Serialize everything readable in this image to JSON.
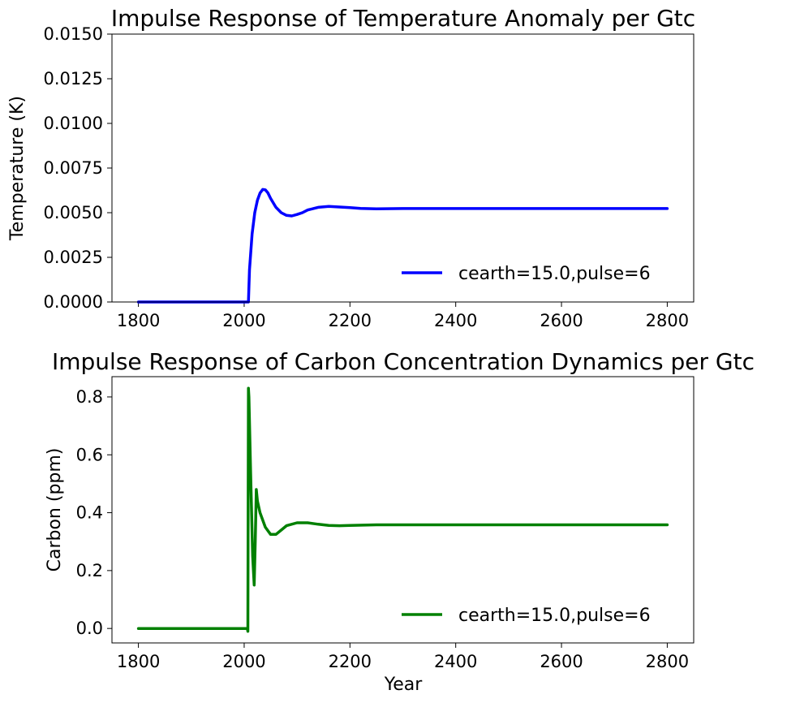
{
  "chart_data": [
    {
      "type": "line",
      "title": "Impulse Response of Temperature Anomaly per Gtc",
      "xlabel": "",
      "ylabel": "Temperature (K)",
      "xlim": [
        1750,
        2850
      ],
      "ylim": [
        0.0,
        0.015
      ],
      "xticks": [
        1800,
        2000,
        2200,
        2400,
        2600,
        2800
      ],
      "yticks": [
        0.0,
        0.0025,
        0.005,
        0.0075,
        0.01,
        0.0125,
        0.015
      ],
      "ytick_labels": [
        "0.0000",
        "0.0025",
        "0.0050",
        "0.0075",
        "0.0100",
        "0.0125",
        "0.0150"
      ],
      "grid": false,
      "legend_position": "lower-right",
      "series": [
        {
          "name": "cearth=15.0,pulse=6",
          "color": "#0000ff",
          "x": [
            1800,
            2008,
            2010,
            2015,
            2020,
            2025,
            2030,
            2035,
            2040,
            2045,
            2050,
            2060,
            2070,
            2080,
            2090,
            2100,
            2110,
            2120,
            2140,
            2160,
            2180,
            2200,
            2220,
            2250,
            2300,
            2400,
            2500,
            2600,
            2700,
            2800
          ],
          "y": [
            0.0,
            0.0,
            0.0018,
            0.0038,
            0.005,
            0.0057,
            0.0061,
            0.0063,
            0.00628,
            0.0061,
            0.0058,
            0.0053,
            0.005,
            0.00485,
            0.00482,
            0.0049,
            0.005,
            0.00515,
            0.0053,
            0.00535,
            0.00532,
            0.00528,
            0.00524,
            0.00522,
            0.00523,
            0.00523,
            0.00523,
            0.00523,
            0.00523,
            0.00523
          ]
        }
      ]
    },
    {
      "type": "line",
      "title": "Impulse Response of Carbon Concentration Dynamics per Gtc",
      "xlabel": "Year",
      "ylabel": "Carbon (ppm)",
      "xlim": [
        1750,
        2850
      ],
      "ylim": [
        -0.05,
        0.87
      ],
      "xticks": [
        1800,
        2000,
        2200,
        2400,
        2600,
        2800
      ],
      "yticks": [
        0.0,
        0.2,
        0.4,
        0.6,
        0.8
      ],
      "ytick_labels": [
        "0.0",
        "0.2",
        "0.4",
        "0.6",
        "0.8"
      ],
      "grid": false,
      "legend_position": "lower-right",
      "series": [
        {
          "name": "cearth=15.0,pulse=6",
          "color": "#008000",
          "x": [
            1800,
            2006,
            2007,
            2008,
            2009,
            2012,
            2016,
            2019,
            2021,
            2023,
            2025,
            2030,
            2040,
            2050,
            2060,
            2070,
            2080,
            2100,
            2120,
            2140,
            2160,
            2180,
            2200,
            2250,
            2300,
            2400,
            2500,
            2600,
            2700,
            2800
          ],
          "y": [
            0.0,
            0.0,
            -0.01,
            0.83,
            0.8,
            0.55,
            0.25,
            0.15,
            0.3,
            0.48,
            0.44,
            0.4,
            0.35,
            0.325,
            0.325,
            0.34,
            0.355,
            0.365,
            0.365,
            0.36,
            0.356,
            0.355,
            0.356,
            0.358,
            0.358,
            0.358,
            0.358,
            0.358,
            0.358,
            0.358
          ]
        }
      ]
    }
  ]
}
